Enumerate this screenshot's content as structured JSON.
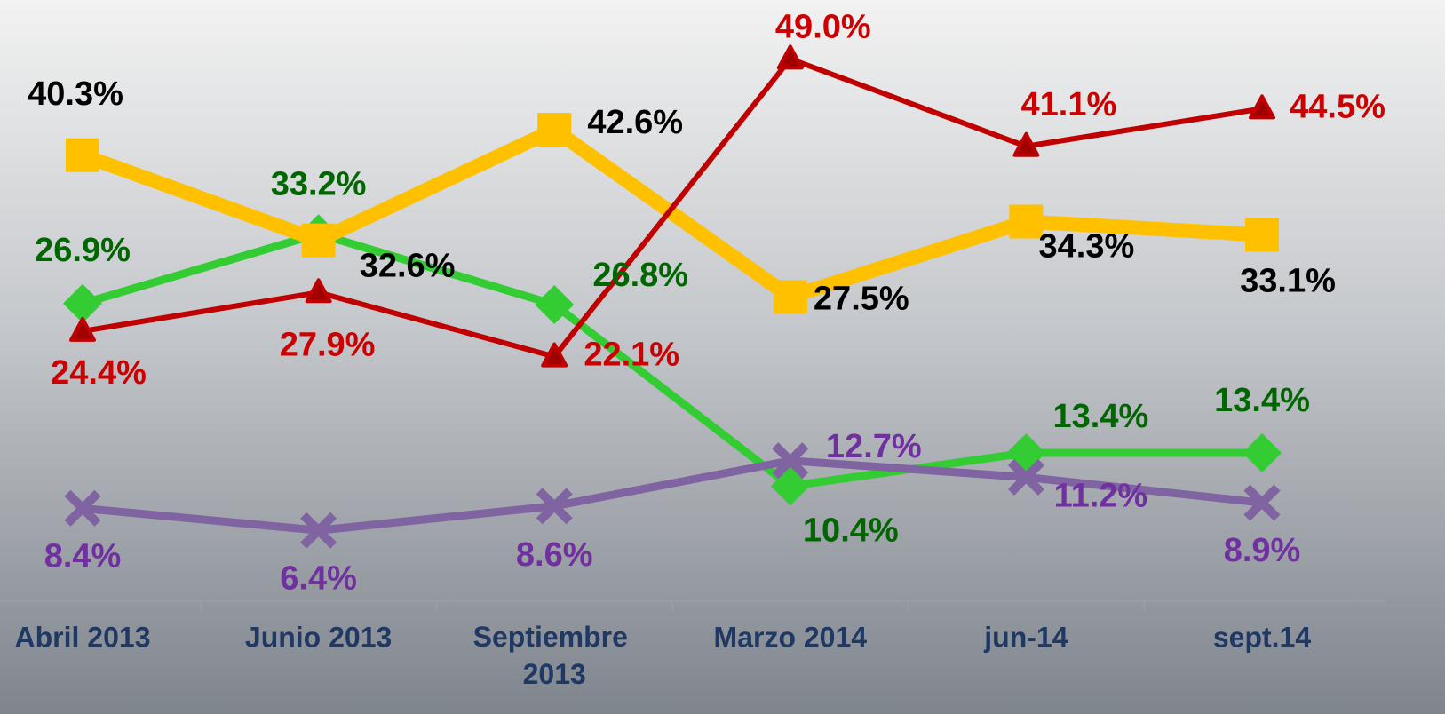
{
  "chart_data": {
    "type": "line",
    "categories": [
      "Abril 2013",
      "Junio 2013",
      "Septiembre 2013",
      "Marzo 2014",
      "jun-14",
      "sept.14"
    ],
    "ylim": [
      0,
      54
    ],
    "series": [
      {
        "color": "#33cc33",
        "label_color": "#006600",
        "marker": "diamond",
        "values": [
          26.9,
          33.2,
          26.8,
          10.4,
          13.4,
          13.4
        ],
        "value_labels": [
          "26.9%",
          "33.2%",
          "26.8%",
          "10.4%",
          "13.4%",
          "13.4%"
        ]
      },
      {
        "color": "#ffc000",
        "label_color": "#000000",
        "marker": "square",
        "values": [
          40.3,
          32.6,
          42.6,
          27.5,
          34.3,
          33.1
        ],
        "value_labels": [
          "40.3%",
          "32.6%",
          "42.6%",
          "27.5%",
          "34.3%",
          "33.1%"
        ]
      },
      {
        "color": "#c00000",
        "label_color": "#cc0000",
        "marker": "triangle",
        "values": [
          24.4,
          27.9,
          22.1,
          49.0,
          41.1,
          44.5
        ],
        "value_labels": [
          "24.4%",
          "27.9%",
          "22.1%",
          "49.0%",
          "41.1%",
          "44.5%"
        ]
      },
      {
        "color": "#8064a2",
        "label_color": "#7030a0",
        "marker": "x",
        "values": [
          8.4,
          6.4,
          8.6,
          12.7,
          11.2,
          8.9
        ],
        "value_labels": [
          "8.4%",
          "6.4%",
          "8.6%",
          "12.7%",
          "11.2%",
          "8.9%"
        ]
      }
    ]
  }
}
